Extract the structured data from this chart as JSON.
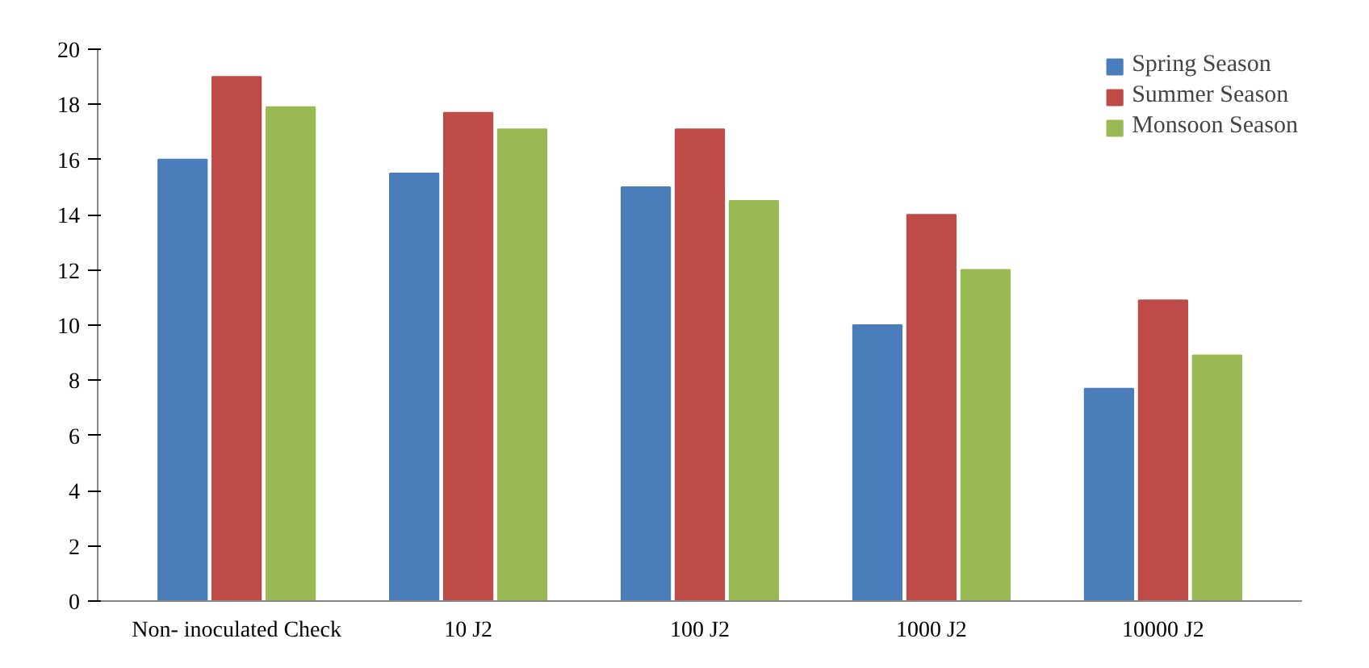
{
  "chart_data": {
    "type": "bar",
    "categories": [
      "Non- inoculated Check",
      "10 J2",
      "100 J2",
      "1000 J2",
      "10000 J2"
    ],
    "series": [
      {
        "name": "Spring Season",
        "color": "#4a7ebb",
        "values": [
          16.0,
          15.5,
          15.0,
          10.0,
          7.7
        ]
      },
      {
        "name": "Summer Season",
        "color": "#be4b48",
        "values": [
          19.0,
          17.7,
          17.1,
          14.0,
          10.9
        ]
      },
      {
        "name": "Monsoon Season",
        "color": "#98b954",
        "values": [
          17.9,
          17.1,
          14.5,
          12.0,
          8.9
        ]
      }
    ],
    "ylim": [
      0,
      20
    ],
    "yticks": [
      0,
      2,
      4,
      6,
      8,
      10,
      12,
      14,
      16,
      18,
      20
    ],
    "grid": false,
    "legend": "top right"
  }
}
